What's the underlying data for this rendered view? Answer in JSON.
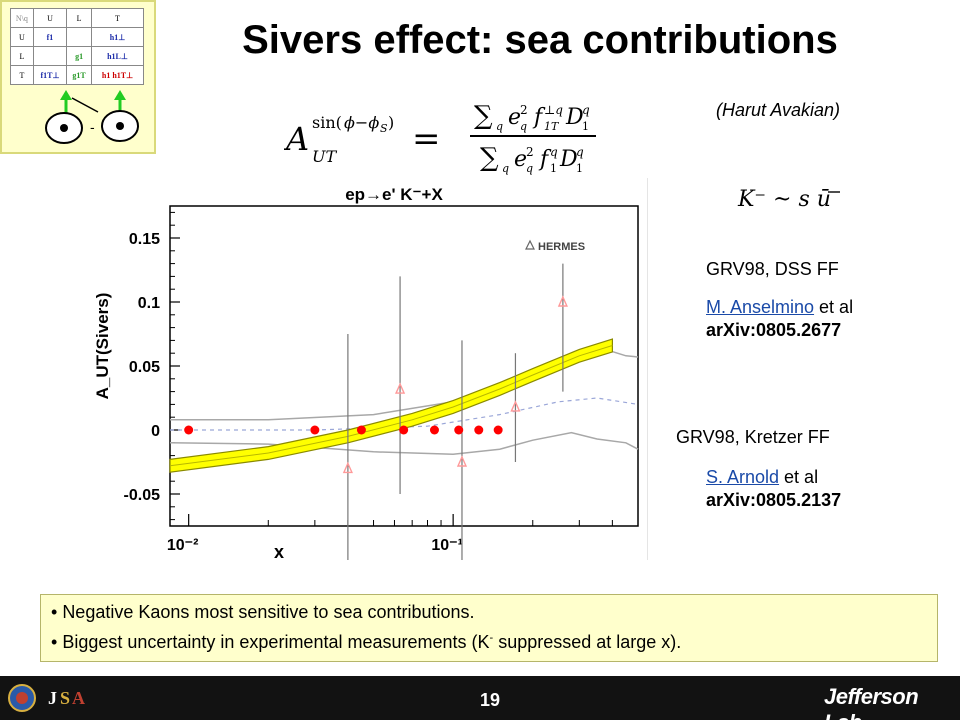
{
  "slide": {
    "title": "Sivers effect:  sea contributions",
    "attribution": "(Harut Avakian)",
    "page_number": "19",
    "footer_logo_right": "Jefferson Lab"
  },
  "thumbnail": {
    "header": [
      "N\\q",
      "U",
      "L",
      "T"
    ],
    "rows": [
      [
        "U",
        "f1",
        "",
        "h1⊥"
      ],
      [
        "L",
        "",
        "g1",
        "h1L⊥"
      ],
      [
        "T",
        "f1T⊥",
        "g1T",
        "h1 h1T⊥"
      ]
    ]
  },
  "notes": {
    "k_minus_formula": "K⁻ ~ s ū",
    "block1_line1": "GRV98, DSS FF",
    "block1_author": "M. Anselmino",
    "block1_etal": " et al",
    "block1_arxiv": "arXiv:0805.2677",
    "block2_line1": "GRV98, Kretzer FF",
    "block2_author": "S. Arnold",
    "block2_etal": " et al",
    "block2_arxiv": "arXiv:0805.2137"
  },
  "bullets": {
    "b1": "Negative Kaons most sensitive  to sea contributions.",
    "b2_pre": "Biggest uncertainty in experimental measurements (K",
    "b2_sup": "-",
    "b2_post": " suppressed at large x)."
  },
  "colors": {
    "band_fill": "#ffff00",
    "band_edge": "#8a8a00",
    "clas_points": "#ff0000",
    "hermes_points": "#ff9999",
    "link": "#1a4aa8",
    "bullet_bg": "#ffffcc",
    "footer_bg": "#121212"
  },
  "chart_data": {
    "type": "scatter",
    "title": "ep→e' K⁻+X",
    "xlabel": "x",
    "ylabel": "A_UT(Sivers)",
    "x_scale": "log",
    "xlim": [
      0.0085,
      0.5
    ],
    "ylim": [
      -0.075,
      0.175
    ],
    "xtick_labels": [
      "10⁻²",
      "10⁻¹"
    ],
    "ytick_labels": [
      "-0.05",
      "0",
      "0.05",
      "0.1",
      "0.15"
    ],
    "yticks": [
      -0.05,
      0,
      0.05,
      0.1,
      0.15
    ],
    "legend": "HERMES",
    "series": [
      {
        "name": "",
        "marker": "circle",
        "x": [
          0.01,
          0.03,
          0.045,
          0.065,
          0.085,
          0.105,
          0.125,
          0.148
        ],
        "y": [
          0,
          0,
          0,
          0,
          0,
          0,
          0,
          0
        ]
      },
      {
        "name": "HERMES",
        "marker": "triangle",
        "x": [
          0.04,
          0.063,
          0.108,
          0.172,
          0.26
        ],
        "y": [
          -0.03,
          0.032,
          -0.025,
          0.018,
          0.1
        ],
        "err_low": [
          -0.12,
          -0.05,
          -0.115,
          -0.025,
          0.03
        ],
        "err_high": [
          0.075,
          0.12,
          0.07,
          0.06,
          0.13
        ]
      }
    ],
    "band": {
      "x": [
        0.0085,
        0.02,
        0.04,
        0.07,
        0.1,
        0.15,
        0.2,
        0.3,
        0.4
      ],
      "center": [
        -0.028,
        -0.018,
        -0.005,
        0.008,
        0.018,
        0.032,
        0.043,
        0.058,
        0.066
      ],
      "half_width": 0.005
    },
    "dashed_curve": {
      "x": [
        0.0085,
        0.03,
        0.08,
        0.15,
        0.25,
        0.35,
        0.5
      ],
      "y": [
        0.0,
        0.0,
        0.003,
        0.012,
        0.022,
        0.025,
        0.02
      ]
    },
    "gray_outer_band": {
      "x": [
        0.0085,
        0.02,
        0.05,
        0.1,
        0.15,
        0.2,
        0.28,
        0.35,
        0.45,
        0.5
      ],
      "upper": [
        0.008,
        0.008,
        0.012,
        0.022,
        0.035,
        0.045,
        0.055,
        0.065,
        0.058,
        0.057
      ],
      "lower": [
        -0.01,
        -0.011,
        -0.017,
        -0.019,
        -0.015,
        -0.008,
        -0.002,
        -0.007,
        -0.01,
        -0.015
      ]
    }
  }
}
